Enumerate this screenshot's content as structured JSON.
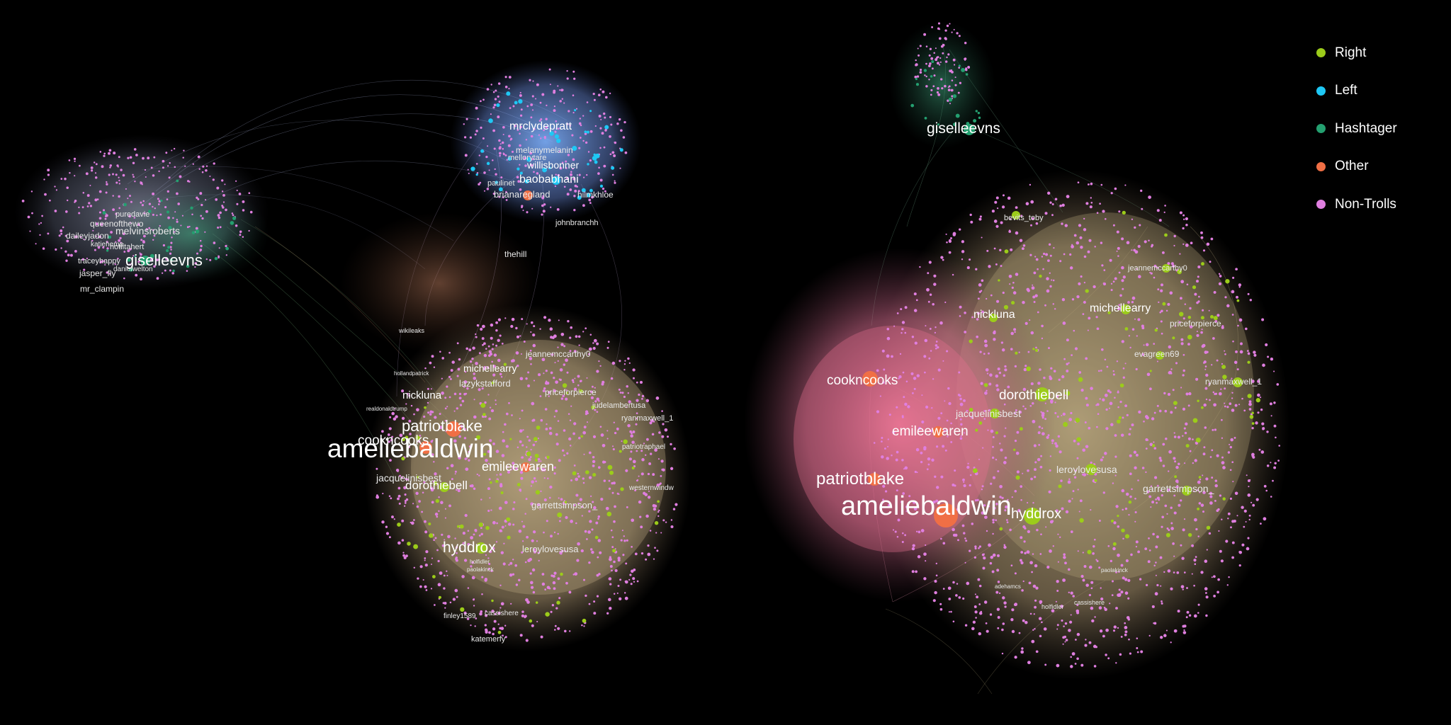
{
  "legend": {
    "items": [
      {
        "label": "Right",
        "color": "#9ccc1a"
      },
      {
        "label": "Left",
        "color": "#1ec8f5"
      },
      {
        "label": "Hashtager",
        "color": "#24a070"
      },
      {
        "label": "Other",
        "color": "#f06f45"
      },
      {
        "label": "Non-Trolls",
        "color": "#e07fe0"
      }
    ]
  },
  "left_graph": {
    "labels": {
      "ameliebaldwin": "ameliebaldwin",
      "patriotblake": "patriotblake",
      "cookncooks": "cookncooks",
      "emileewaren": "emileewaren",
      "dorothiebell": "dorothiebell",
      "jacquelinisbest": "jacquelinisbest",
      "nickluna": "nickluna",
      "michellearry": "michellearry",
      "lazykstafford": "lazykstafford",
      "jeannemccarthy0": "jeannemccarthy0",
      "priceforpierce": "priceforpierce",
      "judelambertusa": "judelambertusa",
      "ryanmaxwell_1": "ryanmaxwell_1",
      "patriotraphael": "patriotraphael",
      "westernwindw": "westernwindw",
      "garrettsimpson_": "garrettsimpson_",
      "hyddrox": "hyddrox",
      "leroylovesusa": "leroylovesusa",
      "thehill": "thehill",
      "giselleevns": "giselleevns",
      "melvinsroberts": "melvinsroberts",
      "queenofthewo": "queenofthewo",
      "puredavie": "puredavie",
      "daileyjadon": "daileyjadon",
      "katiehemp": "katiehemp",
      "notlitahert": "notlitahert",
      "traceyhappy": "traceyhappy",
      "danielwelton": "danielwelton",
      "jasper_fly": "jasper_fly",
      "mr_clampin": "mr_clampin",
      "mrclydepratt": "mrclydepratt",
      "melanymelanin": "melanymelanin",
      "mellorytare": "mellorytare",
      "willisbonner": "willisbonner",
      "baobabhani": "baobabhani",
      "paulinet": "paulinet",
      "brianaregland": "brianaregland",
      "hiimkhloe": "hiimkhloe",
      "johnbranchh": "johnbranchh",
      "wikileaks": "wikileaks",
      "realdonaldtrump": "realdonaldtrump",
      "hollandpatrick": "hollandpatrick",
      "finley1589": "finley1589",
      "cassishere": "cassishere",
      "katemerfy": "katemerfy",
      "paolakinck": "paolakinck",
      "holfidler": "holfidler"
    }
  },
  "right_graph": {
    "labels": {
      "ameliebaldwin": "ameliebaldwin",
      "hyddrox": "hyddrox",
      "patriotblake": "patriotblake",
      "emileewaren": "emileewaren",
      "jacquelinisbest": "jacquelinisbest",
      "dorothiebell": "dorothiebell",
      "cookncooks": "cookncooks",
      "nickluna": "nickluna",
      "leroylovesusa": "leroylovesusa",
      "garrettsimpson_": "garrettsimpson_",
      "ryanmaxwell_1": "ryanmaxwell_1",
      "evagreen69": "evagreen69",
      "priceforpierce": "priceforpierce",
      "michellearry": "michellearry",
      "jeannemccarthy0": "jeannemccarthy0",
      "bevits_toby": "bevits_toby",
      "giselleevns": "giselleevns",
      "cassishere": "cassishere",
      "holfidler": "holfidler",
      "adehamcs": "adehamcs",
      "paolakinck": "paolakinck"
    }
  }
}
